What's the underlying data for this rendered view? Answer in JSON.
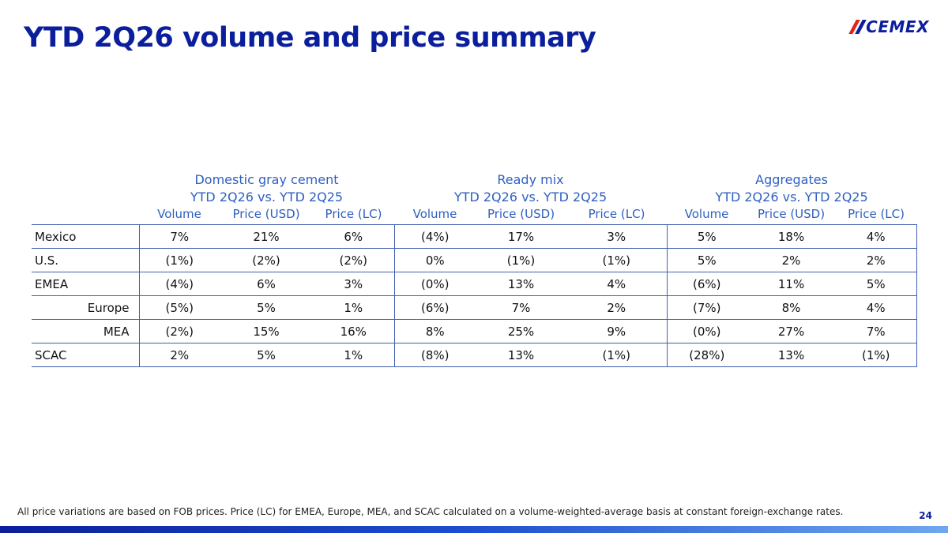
{
  "title": "YTD 2Q26 volume and price summary",
  "logo": {
    "text": "CEMEX"
  },
  "table": {
    "groups": [
      {
        "name": "Domestic gray cement",
        "period": "YTD 2Q26 vs. YTD 2Q25"
      },
      {
        "name": "Ready mix",
        "period": "YTD 2Q26 vs. YTD 2Q25"
      },
      {
        "name": "Aggregates",
        "period": "YTD 2Q26 vs. YTD 2Q25"
      }
    ],
    "columns": [
      "Volume",
      "Price (USD)",
      "Price (LC)"
    ],
    "rows": [
      {
        "label": "Mexico",
        "values": [
          "7%",
          "21%",
          "6%",
          "(4%)",
          "17%",
          "3%",
          "5%",
          "18%",
          "4%"
        ]
      },
      {
        "label": "U.S.",
        "values": [
          "(1%)",
          "(2%)",
          "(2%)",
          "0%",
          "(1%)",
          "(1%)",
          "5%",
          "2%",
          "2%"
        ]
      },
      {
        "label": "EMEA",
        "values": [
          "(4%)",
          "6%",
          "3%",
          "(0%)",
          "13%",
          "4%",
          "(6%)",
          "11%",
          "5%"
        ]
      },
      {
        "label": "Europe",
        "values": [
          "(5%)",
          "5%",
          "1%",
          "(6%)",
          "7%",
          "2%",
          "(7%)",
          "8%",
          "4%"
        ]
      },
      {
        "label": "MEA",
        "values": [
          "(2%)",
          "15%",
          "16%",
          "8%",
          "25%",
          "9%",
          "(0%)",
          "27%",
          "7%"
        ]
      },
      {
        "label": "SCAC",
        "values": [
          "2%",
          "5%",
          "1%",
          "(8%)",
          "13%",
          "(1%)",
          "(28%)",
          "13%",
          "(1%)"
        ]
      }
    ]
  },
  "footnote": "All price variations are based on FOB prices. Price (LC) for EMEA, Europe, MEA, and SCAC calculated on a volume-weighted-average basis at constant foreign-exchange rates.",
  "page_number": "24",
  "colors": {
    "title": "#0b1e9c",
    "header": "#2e5fc0",
    "rule": "#3f5fb0",
    "logo_red": "#e2231a"
  }
}
